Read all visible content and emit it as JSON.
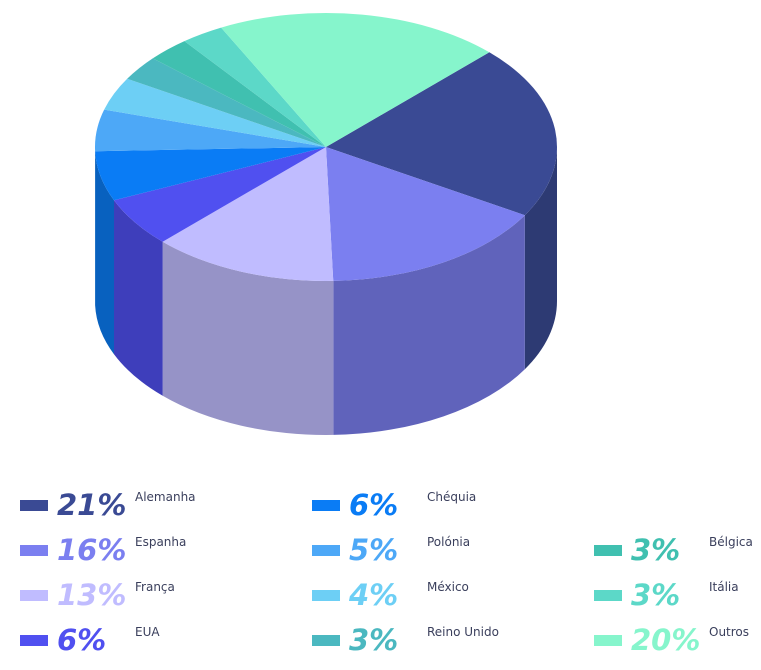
{
  "chart_data": {
    "type": "pie3d",
    "categories": [
      "Alemanha",
      "Espanha",
      "França",
      "EUA",
      "Chéquia",
      "Polónia",
      "México",
      "Reino Unido",
      "Bélgica",
      "Itália",
      "Outros"
    ],
    "values": [
      21,
      16,
      13,
      6,
      6,
      5,
      4,
      3,
      3,
      3,
      20
    ],
    "value_labels": [
      "21%",
      "16%",
      "13%",
      "6%",
      "6%",
      "5%",
      "4%",
      "3%",
      "3%",
      "3%",
      "20%"
    ],
    "colors": [
      "#3a4a94",
      "#7b7ff0",
      "#c0bcff",
      "#5050f0",
      "#0a7cf5",
      "#4da8f7",
      "#6dcff5",
      "#4bb8c0",
      "#40c0b0",
      "#5cd8c8",
      "#86f5cc"
    ]
  }
}
